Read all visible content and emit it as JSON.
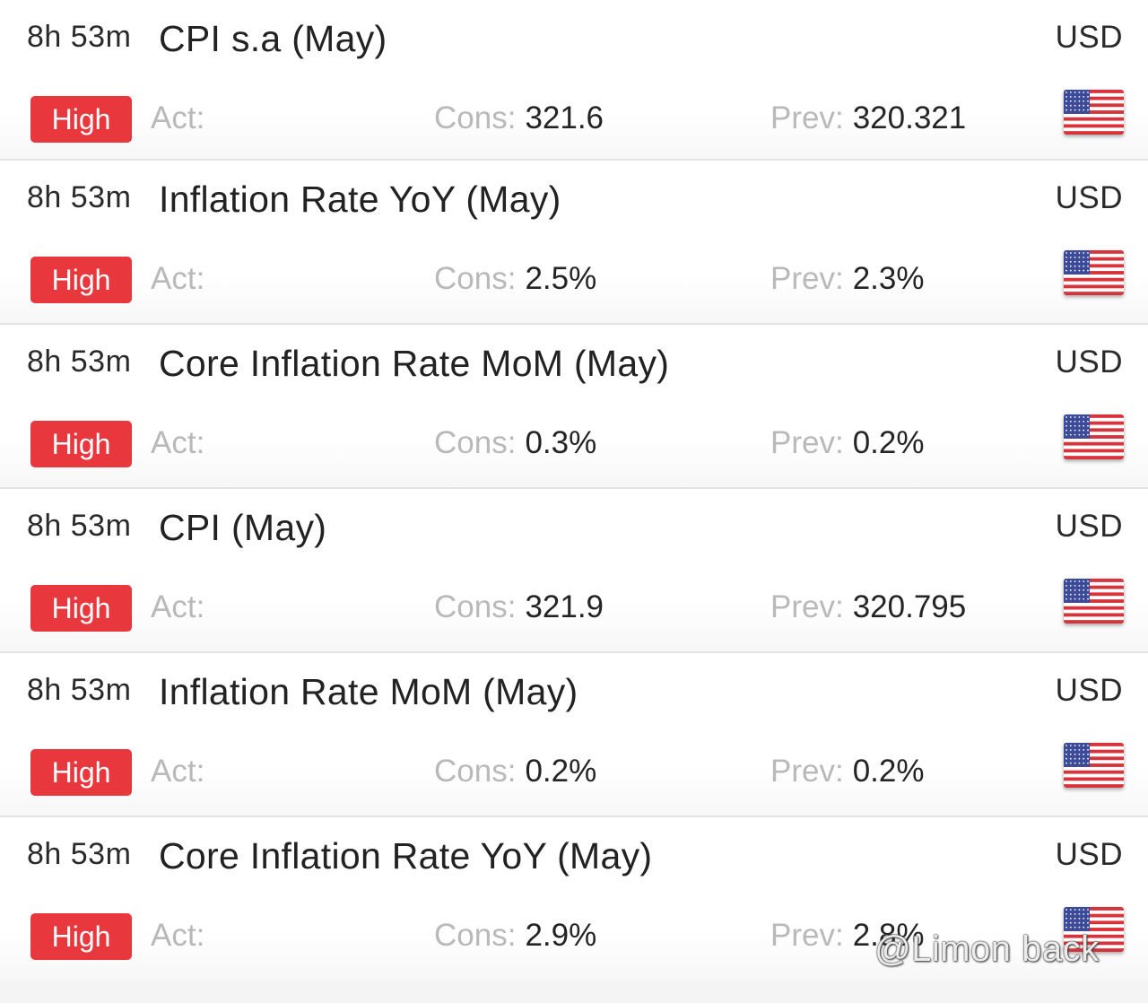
{
  "events": [
    {
      "time": "8h 53m",
      "title": "CPI s.a (May)",
      "currency": "USD",
      "impact": "High",
      "act_label": "Act:",
      "act_value": "",
      "cons_label": "Cons:",
      "cons_value": "321.6",
      "prev_label": "Prev:",
      "prev_value": "320.321",
      "flag_icon": "us-flag-icon"
    },
    {
      "time": "8h 53m",
      "title": "Inflation Rate YoY (May)",
      "currency": "USD",
      "impact": "High",
      "act_label": "Act:",
      "act_value": "",
      "cons_label": "Cons:",
      "cons_value": "2.5%",
      "prev_label": "Prev:",
      "prev_value": "2.3%",
      "flag_icon": "us-flag-icon"
    },
    {
      "time": "8h 53m",
      "title": "Core Inflation Rate MoM (May)",
      "currency": "USD",
      "impact": "High",
      "act_label": "Act:",
      "act_value": "",
      "cons_label": "Cons:",
      "cons_value": "0.3%",
      "prev_label": "Prev:",
      "prev_value": "0.2%",
      "flag_icon": "us-flag-icon"
    },
    {
      "time": "8h 53m",
      "title": "CPI (May)",
      "currency": "USD",
      "impact": "High",
      "act_label": "Act:",
      "act_value": "",
      "cons_label": "Cons:",
      "cons_value": "321.9",
      "prev_label": "Prev:",
      "prev_value": "320.795",
      "flag_icon": "us-flag-icon"
    },
    {
      "time": "8h 53m",
      "title": "Inflation Rate MoM (May)",
      "currency": "USD",
      "impact": "High",
      "act_label": "Act:",
      "act_value": "",
      "cons_label": "Cons:",
      "cons_value": "0.2%",
      "prev_label": "Prev:",
      "prev_value": "0.2%",
      "flag_icon": "us-flag-icon"
    },
    {
      "time": "8h 53m",
      "title": "Core Inflation Rate YoY (May)",
      "currency": "USD",
      "impact": "High",
      "act_label": "Act:",
      "act_value": "",
      "cons_label": "Cons:",
      "cons_value": "2.9%",
      "prev_label": "Prev:",
      "prev_value": "2.8%",
      "flag_icon": "us-flag-icon"
    }
  ],
  "watermark": "@Limon back",
  "colors": {
    "impact_high": "#e8383e",
    "label_gray": "#b9b9b9",
    "text_dark": "#242424"
  }
}
